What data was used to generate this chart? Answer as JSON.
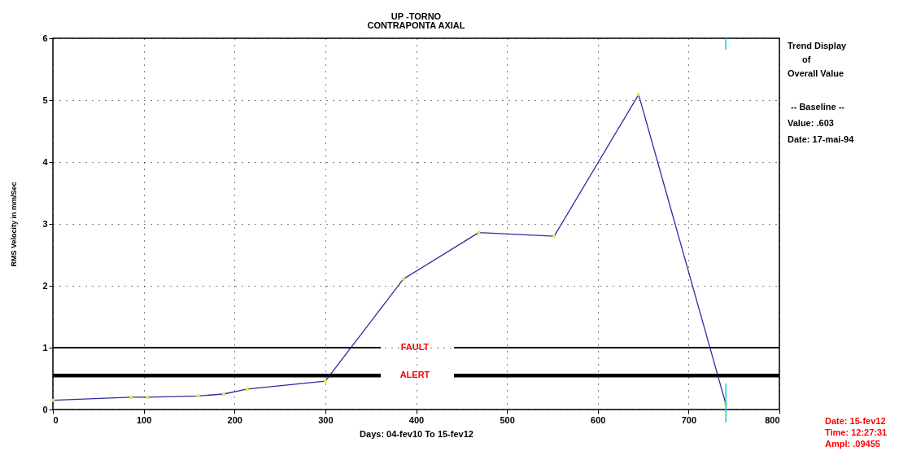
{
  "chart_data": {
    "type": "line",
    "title": "UP -TORNO",
    "subtitle": "CONTRAPONTA AXIAL",
    "xlabel": "Days: 04-fev10 To 15-fev12",
    "ylabel": "RMS Velocity in mm/Sec",
    "x": [
      0,
      86,
      104,
      160,
      188,
      214,
      300,
      386,
      469,
      552,
      645,
      741
    ],
    "series": [
      {
        "color": "#2b2ba0",
        "values": [
          0.15,
          0.2,
          0.2,
          0.22,
          0.25,
          0.33,
          0.46,
          2.11,
          2.86,
          2.8,
          5.09,
          0.09
        ]
      }
    ],
    "xlim": [
      0,
      800
    ],
    "xticks": [
      0,
      100,
      200,
      300,
      400,
      500,
      600,
      700,
      800
    ],
    "ylim": [
      0,
      6
    ],
    "yticks": [
      0,
      1,
      2,
      3,
      4,
      5,
      6
    ],
    "grid": true,
    "marker": "circle",
    "ref_lines": [
      {
        "axis": "y",
        "value": 1,
        "label": "FAULT",
        "color": "#000000"
      },
      {
        "axis": "y",
        "value": 0.55,
        "label": "ALERT",
        "color": "#000000"
      },
      {
        "axis": "x",
        "value": 741,
        "color": "#00d8e8"
      }
    ],
    "annotations": [
      "Trend Display",
      "of",
      "Overall Value",
      "-- Baseline --",
      "Value:     .603",
      "Date:  17-mai-94",
      "Date:    15-fev12",
      "Time:    12:27:31",
      "Ampl:    .09455"
    ]
  }
}
